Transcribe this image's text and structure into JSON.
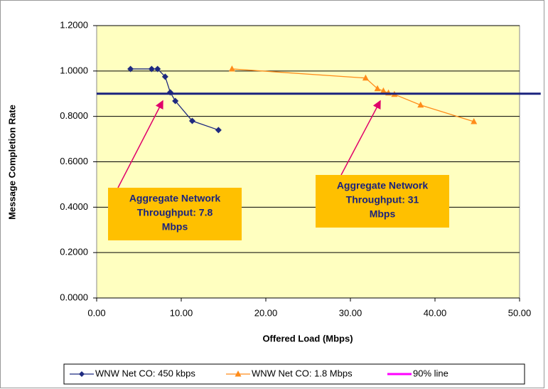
{
  "chart_data": {
    "type": "line",
    "y_label": "Message Completion Rate",
    "x_label": "Offered Load (Mbps)",
    "xlim": [
      0,
      50
    ],
    "ylim": [
      0,
      1.2
    ],
    "xticks": [
      {
        "value": 0,
        "label": "0.00"
      },
      {
        "value": 10,
        "label": "10.00"
      },
      {
        "value": 20,
        "label": "20.00"
      },
      {
        "value": 30,
        "label": "30.00"
      },
      {
        "value": 40,
        "label": "40.00"
      },
      {
        "value": 50,
        "label": "50.00"
      }
    ],
    "yticks": [
      {
        "value": 0,
        "label": "0.0000"
      },
      {
        "value": 0.2,
        "label": "0.2000"
      },
      {
        "value": 0.4,
        "label": "0.4000"
      },
      {
        "value": 0.6,
        "label": "0.6000"
      },
      {
        "value": 0.8,
        "label": "0.8000"
      },
      {
        "value": 1,
        "label": "1.0000"
      },
      {
        "value": 1.2,
        "label": "1.2000"
      }
    ],
    "grid": true,
    "plot_background": "#ffffc0",
    "series": [
      {
        "name": "WNW Net CO: 450 kbps",
        "color": "#1f2a80",
        "marker": "diamond",
        "x": [
          4.0,
          6.5,
          7.2,
          8.1,
          8.7,
          9.3,
          11.3,
          14.4
        ],
        "values": [
          1.009,
          1.009,
          1.009,
          0.975,
          0.906,
          0.868,
          0.78,
          0.74
        ]
      },
      {
        "name": "WNW Net CO: 1.8 Mbps",
        "color": "#ff8c1a",
        "marker": "triangle",
        "x": [
          16.0,
          31.8,
          33.2,
          33.9,
          34.5,
          35.2,
          38.3,
          44.6
        ],
        "values": [
          1.009,
          0.969,
          0.922,
          0.912,
          0.903,
          0.897,
          0.85,
          0.777
        ]
      },
      {
        "name": "90% line",
        "color": "#ff00ff",
        "line_color": "#1a237e",
        "marker": "none",
        "x": [
          0,
          52.5
        ],
        "values": [
          0.9,
          0.9
        ]
      }
    ],
    "annotations": [
      {
        "lines": [
          "Aggregate Network",
          "Throughput: 7.8",
          "Mbps"
        ],
        "color": "#ffc000"
      },
      {
        "lines": [
          "Aggregate Network",
          "Throughput: 31",
          "Mbps"
        ],
        "color": "#ffc000"
      }
    ]
  }
}
